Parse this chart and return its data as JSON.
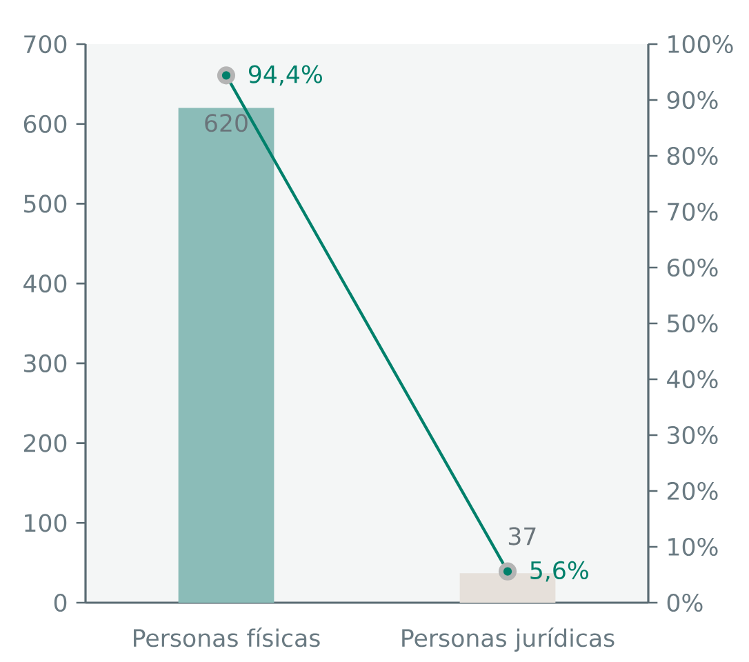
{
  "chart_data": {
    "type": "bar",
    "categories": [
      "Personas físicas",
      "Personas jurídicas"
    ],
    "series": [
      {
        "colors": [
          "#8bbcb8",
          "#e6e0da"
        ],
        "values": [
          620,
          37
        ],
        "value_labels": [
          "620",
          "37"
        ]
      },
      {
        "type": "line",
        "axis": "y2",
        "color": "#00806b",
        "values": [
          94.4,
          5.6
        ],
        "value_labels": [
          "94,4%",
          "5,6%"
        ]
      }
    ],
    "marker": "circle",
    "ylim": [
      0,
      700
    ],
    "yticks": [
      0,
      100,
      200,
      300,
      400,
      500,
      600,
      700
    ],
    "y2lim": [
      0,
      100
    ],
    "y2ticks": [
      {
        "value": 0,
        "label": "0%"
      },
      {
        "value": 10,
        "label": "10%"
      },
      {
        "value": 20,
        "label": "20%"
      },
      {
        "value": 30,
        "label": "30%"
      },
      {
        "value": 40,
        "label": "40%"
      },
      {
        "value": 50,
        "label": "50%"
      },
      {
        "value": 60,
        "label": "60%"
      },
      {
        "value": 70,
        "label": "70%"
      },
      {
        "value": 80,
        "label": "80%"
      },
      {
        "value": 90,
        "label": "90%"
      },
      {
        "value": 100,
        "label": "100%"
      }
    ]
  }
}
